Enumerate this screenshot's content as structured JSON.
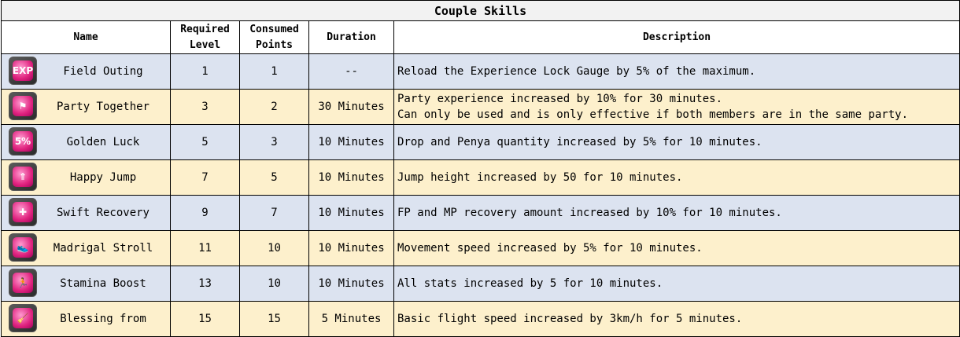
{
  "table": {
    "title": "Couple Skills",
    "headers": {
      "name": "Name",
      "required_level_1": "Required",
      "required_level_2": "Level",
      "consumed_points_1": "Consumed",
      "consumed_points_2": "Points",
      "duration": "Duration",
      "description": "Description"
    },
    "rows": [
      {
        "icon": "exp-icon",
        "icon_text": "EXP",
        "name": "Field Outing",
        "level": "1",
        "points": "1",
        "duration": "--",
        "desc": [
          "Reload the Experience Lock Gauge by 5% of the maximum."
        ]
      },
      {
        "icon": "party-icon",
        "icon_text": "⚑",
        "name": "Party Together",
        "level": "3",
        "points": "2",
        "duration": "30 Minutes",
        "desc": [
          "Party experience increased by 10% for 30 minutes.",
          "Can only be used and is only effective if both members are in the same party."
        ]
      },
      {
        "icon": "luck-bag-icon",
        "icon_text": "5%",
        "name": "Golden Luck",
        "level": "5",
        "points": "3",
        "duration": "10 Minutes",
        "desc": [
          "Drop and Penya quantity increased by 5% for 10 minutes."
        ]
      },
      {
        "icon": "jump-arrow-icon",
        "icon_text": "⇑",
        "name": "Happy Jump",
        "level": "7",
        "points": "5",
        "duration": "10 Minutes",
        "desc": [
          "Jump height increased by 50 for 10 minutes."
        ]
      },
      {
        "icon": "recovery-cross-icon",
        "icon_text": "✚",
        "name": "Swift Recovery",
        "level": "9",
        "points": "7",
        "duration": "10 Minutes",
        "desc": [
          "FP and MP recovery amount increased by 10% for 10 minutes."
        ]
      },
      {
        "icon": "boot-icon",
        "icon_text": "👟",
        "name": "Madrigal Stroll",
        "level": "11",
        "points": "10",
        "duration": "10 Minutes",
        "desc": [
          "Movement speed increased by 5% for 10 minutes."
        ]
      },
      {
        "icon": "running-figure-icon",
        "icon_text": "🏃",
        "name": "Stamina Boost",
        "level": "13",
        "points": "10",
        "duration": "10 Minutes",
        "desc": [
          "All stats increased by 5 for 10 minutes."
        ]
      },
      {
        "icon": "broom-icon",
        "icon_text": "🧹",
        "name": "Blessing from",
        "level": "15",
        "points": "15",
        "duration": "5 Minutes",
        "desc": [
          "Basic flight speed increased by 3km/h for 5 minutes."
        ]
      }
    ]
  }
}
